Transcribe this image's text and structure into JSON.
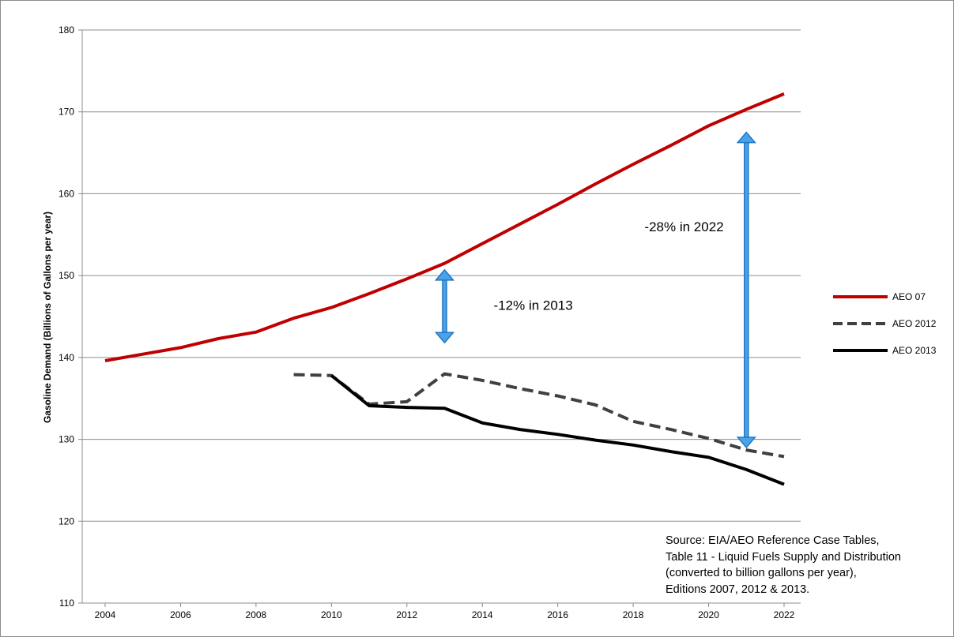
{
  "chart_data": {
    "type": "line",
    "title": "",
    "ylabel": "Gasoline Demand (Billions of Gallons per year)",
    "xlabel": "",
    "ylim": [
      110,
      180
    ],
    "yticks": [
      110,
      120,
      130,
      140,
      150,
      160,
      170,
      180
    ],
    "xlim": [
      2004,
      2022
    ],
    "xticks": [
      "2004",
      "2006",
      "2008",
      "2010",
      "2012",
      "2014",
      "2016",
      "2018",
      "2020",
      "2022"
    ],
    "grid": "horizontal",
    "legend_position": "right",
    "series": [
      {
        "name": "AEO 07",
        "color": "#c00000",
        "style": "solid",
        "x": [
          2004,
          2005,
          2006,
          2007,
          2008,
          2009,
          2010,
          2011,
          2012,
          2013,
          2014,
          2015,
          2016,
          2017,
          2018,
          2019,
          2020,
          2021,
          2022
        ],
        "y": [
          139.6,
          140.4,
          141.2,
          142.3,
          143.1,
          144.8,
          146.1,
          147.8,
          149.6,
          151.5,
          153.9,
          156.3,
          158.7,
          161.2,
          163.6,
          165.9,
          168.3,
          170.3,
          172.2
        ]
      },
      {
        "name": "AEO 2012",
        "color": "#404040",
        "style": "dashed",
        "x": [
          2009,
          2010,
          2011,
          2012,
          2013,
          2014,
          2015,
          2016,
          2017,
          2018,
          2019,
          2020,
          2021,
          2022
        ],
        "y": [
          137.9,
          137.8,
          134.3,
          134.6,
          138.0,
          137.2,
          136.2,
          135.3,
          134.2,
          132.2,
          131.2,
          130.1,
          128.7,
          127.9
        ]
      },
      {
        "name": "AEO 2013",
        "color": "#000000",
        "style": "solid",
        "x": [
          2010,
          2011,
          2012,
          2013,
          2014,
          2015,
          2016,
          2017,
          2018,
          2019,
          2020,
          2021,
          2022
        ],
        "y": [
          137.8,
          134.1,
          133.9,
          133.8,
          132.0,
          131.2,
          130.6,
          129.9,
          129.3,
          128.5,
          127.8,
          126.3,
          124.5
        ]
      }
    ],
    "annotations": [
      {
        "text": "-12% in 2013",
        "arrow_x": 2013,
        "arrow_from": 141.8,
        "arrow_to": 150.7,
        "text_x": 2014.3,
        "text_y": 146.4
      },
      {
        "text": "-28% in 2022",
        "arrow_x": 2021,
        "arrow_from": 129.0,
        "arrow_to": 167.5,
        "text_x": 2018.3,
        "text_y": 156.0
      }
    ],
    "arrow_color": "#1f77c4",
    "source_lines": [
      "Source:  EIA/AEO Reference Case  Tables,",
      "Table 11 - Liquid Fuels Supply and Distribution",
      "(converted to billion gallons per year),",
      "Editions 2007, 2012 & 2013."
    ]
  }
}
